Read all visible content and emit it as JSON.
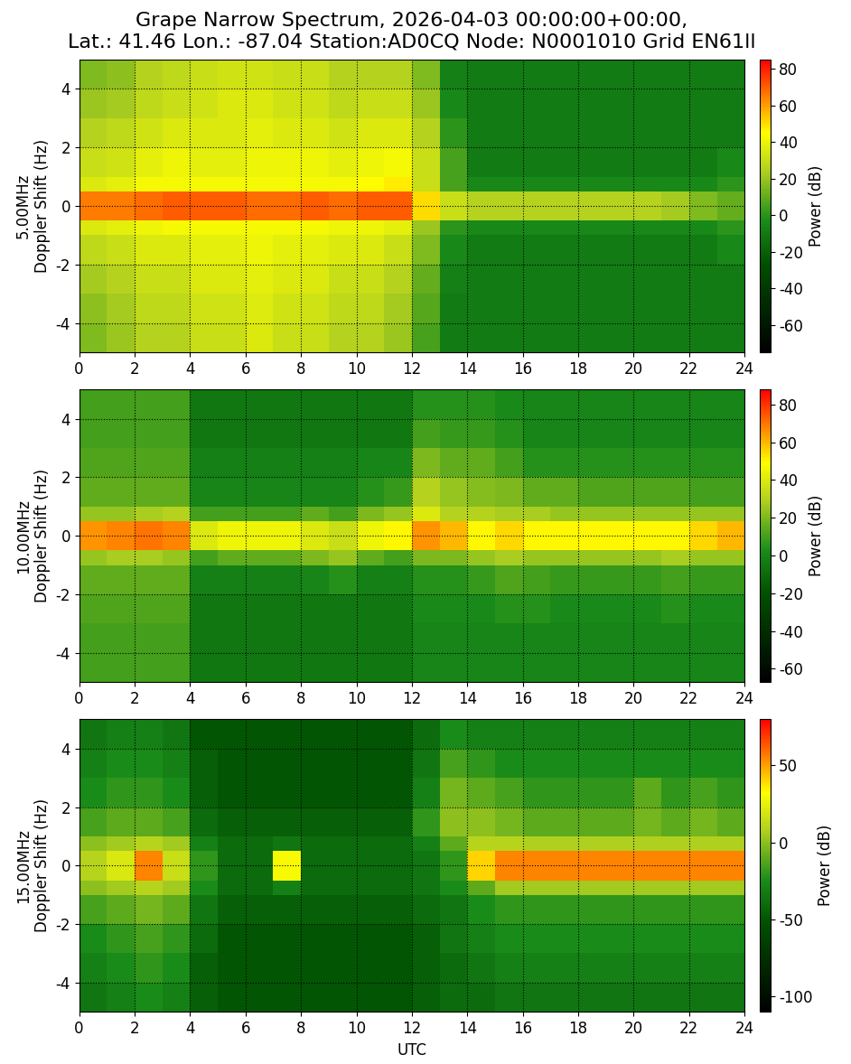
{
  "chart_data": [
    {
      "type": "heatmap",
      "title": "Grape Narrow Spectrum, 2026-04-03 00:00:00+00:00,\nLat.: 41.46 Lon.: -87.04 Station:AD0CQ Node: N0001010 Grid EN61ll",
      "ylabel": "5.00MHz\nDoppler Shift (Hz)",
      "time_edges": [
        0,
        1,
        2,
        3,
        4,
        5,
        6,
        7,
        8,
        9,
        10,
        11,
        12,
        13,
        14,
        15,
        16,
        17,
        18,
        19,
        20,
        21,
        22,
        23,
        24
      ],
      "doppler_edges": [
        -5,
        -4,
        -3,
        -2,
        -1,
        -0.5,
        0.5,
        1,
        2,
        3,
        4,
        5
      ],
      "cells": [
        [
          15,
          20,
          25,
          25,
          30,
          30,
          35,
          30,
          30,
          25,
          25,
          20,
          5,
          -10,
          -10,
          -10,
          -10,
          -10,
          -10,
          -10,
          -10,
          -10,
          -10,
          -10
        ],
        [
          18,
          22,
          28,
          28,
          32,
          32,
          36,
          32,
          32,
          28,
          28,
          22,
          8,
          -10,
          -10,
          -10,
          -10,
          -10,
          -10,
          -10,
          -10,
          -10,
          -10,
          -10
        ],
        [
          22,
          25,
          30,
          30,
          35,
          35,
          38,
          35,
          35,
          30,
          30,
          25,
          10,
          -8,
          -10,
          -10,
          -10,
          -10,
          -10,
          -10,
          -10,
          -10,
          -10,
          -10
        ],
        [
          28,
          30,
          35,
          35,
          38,
          38,
          40,
          38,
          38,
          35,
          35,
          30,
          15,
          -5,
          -10,
          -10,
          -10,
          -10,
          -10,
          -10,
          -10,
          -10,
          -10,
          -5
        ],
        [
          35,
          38,
          40,
          42,
          42,
          42,
          42,
          42,
          42,
          40,
          40,
          38,
          20,
          0,
          -5,
          -5,
          -5,
          -5,
          -5,
          -5,
          -5,
          -5,
          -5,
          0
        ],
        [
          65,
          65,
          68,
          70,
          70,
          70,
          68,
          68,
          70,
          68,
          70,
          70,
          50,
          30,
          25,
          25,
          25,
          25,
          25,
          25,
          25,
          22,
          15,
          10
        ],
        [
          35,
          38,
          42,
          42,
          42,
          42,
          42,
          42,
          42,
          42,
          45,
          48,
          30,
          5,
          -5,
          -5,
          -5,
          -5,
          -5,
          -5,
          -5,
          -5,
          -5,
          0
        ],
        [
          30,
          32,
          38,
          40,
          38,
          38,
          40,
          40,
          40,
          38,
          40,
          42,
          30,
          5,
          -10,
          -10,
          -10,
          -10,
          -10,
          -10,
          -10,
          -10,
          -10,
          -5
        ],
        [
          25,
          28,
          32,
          35,
          35,
          35,
          38,
          35,
          35,
          32,
          35,
          35,
          25,
          0,
          -10,
          -10,
          -10,
          -10,
          -10,
          -10,
          -10,
          -10,
          -10,
          -10
        ],
        [
          20,
          22,
          28,
          30,
          32,
          35,
          35,
          32,
          32,
          28,
          30,
          30,
          20,
          -5,
          -10,
          -10,
          -10,
          -10,
          -10,
          -10,
          -10,
          -10,
          -10,
          -10
        ],
        [
          15,
          18,
          25,
          28,
          30,
          32,
          32,
          30,
          30,
          25,
          25,
          25,
          15,
          -8,
          -10,
          -10,
          -10,
          -10,
          -10,
          -10,
          -10,
          -10,
          -10,
          -10
        ]
      ],
      "xlim": [
        0,
        24
      ],
      "ylim": [
        -5,
        5
      ],
      "xticks": [
        0,
        2,
        4,
        6,
        8,
        10,
        12,
        14,
        16,
        18,
        20,
        22,
        24
      ],
      "yticks": [
        -4,
        -2,
        0,
        2,
        4
      ],
      "grid": true,
      "colorbar": {
        "label": "Power (dB)",
        "range": [
          -75,
          85
        ],
        "ticks": [
          -60,
          -40,
          -20,
          0,
          20,
          40,
          60,
          80
        ]
      }
    },
    {
      "type": "heatmap",
      "ylabel": "10.00MHz\nDoppler Shift (Hz)",
      "time_edges": [
        0,
        1,
        2,
        3,
        4,
        5,
        6,
        7,
        8,
        9,
        10,
        11,
        12,
        13,
        14,
        15,
        16,
        17,
        18,
        19,
        20,
        21,
        22,
        23,
        24
      ],
      "doppler_edges": [
        -5,
        -4,
        -3,
        -2,
        -1,
        -0.5,
        0.5,
        1,
        2,
        3,
        4,
        5
      ],
      "cells": [
        [
          10,
          10,
          10,
          10,
          -5,
          -5,
          -5,
          -5,
          -5,
          -5,
          -5,
          -5,
          0,
          0,
          0,
          0,
          0,
          0,
          0,
          0,
          0,
          0,
          0,
          0
        ],
        [
          10,
          10,
          10,
          10,
          -5,
          -5,
          -5,
          -5,
          -5,
          -5,
          -5,
          -5,
          0,
          0,
          0,
          0,
          0,
          0,
          0,
          0,
          0,
          0,
          0,
          0
        ],
        [
          12,
          12,
          12,
          12,
          -5,
          -5,
          -5,
          -5,
          -5,
          -5,
          -5,
          -5,
          2,
          2,
          2,
          5,
          5,
          2,
          2,
          2,
          2,
          5,
          2,
          2
        ],
        [
          15,
          15,
          15,
          15,
          -2,
          -2,
          -2,
          -2,
          0,
          5,
          -2,
          -2,
          5,
          5,
          8,
          12,
          10,
          8,
          8,
          8,
          8,
          10,
          8,
          8
        ],
        [
          25,
          28,
          28,
          25,
          10,
          15,
          15,
          15,
          20,
          25,
          15,
          10,
          20,
          20,
          25,
          28,
          25,
          25,
          25,
          25,
          25,
          28,
          25,
          25
        ],
        [
          65,
          68,
          70,
          68,
          40,
          45,
          45,
          45,
          40,
          35,
          45,
          50,
          65,
          60,
          50,
          55,
          50,
          50,
          50,
          50,
          50,
          50,
          55,
          60
        ],
        [
          25,
          25,
          28,
          30,
          10,
          10,
          10,
          10,
          15,
          10,
          20,
          25,
          40,
          30,
          30,
          28,
          28,
          25,
          25,
          25,
          25,
          25,
          25,
          25
        ],
        [
          15,
          15,
          15,
          15,
          0,
          0,
          0,
          0,
          0,
          0,
          5,
          8,
          30,
          25,
          22,
          20,
          15,
          15,
          12,
          12,
          12,
          12,
          10,
          10
        ],
        [
          12,
          12,
          12,
          12,
          -2,
          -2,
          -2,
          -2,
          -2,
          -2,
          0,
          0,
          20,
          15,
          15,
          10,
          5,
          5,
          5,
          5,
          5,
          5,
          5,
          5
        ],
        [
          10,
          10,
          10,
          10,
          -5,
          -5,
          -5,
          -5,
          -5,
          -5,
          -5,
          -5,
          10,
          8,
          8,
          5,
          0,
          0,
          0,
          0,
          0,
          0,
          0,
          0
        ],
        [
          10,
          10,
          10,
          10,
          -5,
          -5,
          -5,
          -5,
          -5,
          -5,
          -5,
          -5,
          5,
          5,
          5,
          2,
          0,
          0,
          0,
          0,
          0,
          0,
          0,
          0
        ]
      ],
      "xlim": [
        0,
        24
      ],
      "ylim": [
        -5,
        5
      ],
      "xticks": [
        0,
        2,
        4,
        6,
        8,
        10,
        12,
        14,
        16,
        18,
        20,
        22,
        24
      ],
      "yticks": [
        -4,
        -2,
        0,
        2,
        4
      ],
      "grid": true,
      "colorbar": {
        "label": "Power (dB)",
        "range": [
          -67,
          88
        ],
        "ticks": [
          -60,
          -40,
          -20,
          0,
          20,
          40,
          60,
          80
        ]
      }
    },
    {
      "type": "heatmap",
      "ylabel": "15.00MHz\nDoppler Shift (Hz)",
      "xlabel": "UTC",
      "time_edges": [
        0,
        1,
        2,
        3,
        4,
        5,
        6,
        7,
        8,
        9,
        10,
        11,
        12,
        13,
        14,
        15,
        16,
        17,
        18,
        19,
        20,
        21,
        22,
        23,
        24
      ],
      "doppler_edges": [
        -5,
        -4,
        -3,
        -2,
        -1,
        -0.5,
        0.5,
        1,
        2,
        3,
        4,
        5
      ],
      "cells": [
        [
          -35,
          -30,
          -25,
          -30,
          -45,
          -50,
          -50,
          -50,
          -50,
          -50,
          -50,
          -50,
          -45,
          -40,
          -40,
          -35,
          -35,
          -35,
          -35,
          -35,
          -35,
          -35,
          -35,
          -35
        ],
        [
          -30,
          -25,
          -20,
          -25,
          -45,
          -50,
          -50,
          -50,
          -50,
          -50,
          -50,
          -50,
          -45,
          -40,
          -35,
          -30,
          -30,
          -30,
          -30,
          -30,
          -30,
          -30,
          -30,
          -30
        ],
        [
          -25,
          -20,
          -15,
          -20,
          -40,
          -50,
          -50,
          -50,
          -50,
          -50,
          -50,
          -50,
          -45,
          -35,
          -30,
          -25,
          -25,
          -25,
          -25,
          -25,
          -25,
          -25,
          -25,
          -25
        ],
        [
          -15,
          -10,
          -5,
          -10,
          -35,
          -45,
          -45,
          -45,
          -45,
          -45,
          -45,
          -45,
          -40,
          -35,
          -25,
          -20,
          -20,
          -20,
          -20,
          -20,
          -20,
          -20,
          -20,
          -20
        ],
        [
          0,
          5,
          10,
          5,
          -25,
          -40,
          -40,
          -30,
          -40,
          -40,
          -40,
          -40,
          -35,
          -25,
          -10,
          5,
          5,
          5,
          5,
          5,
          5,
          5,
          5,
          5
        ],
        [
          10,
          20,
          55,
          15,
          -20,
          -40,
          -40,
          30,
          -40,
          -40,
          -40,
          -40,
          -35,
          -20,
          40,
          55,
          55,
          55,
          55,
          55,
          55,
          55,
          55,
          55
        ],
        [
          0,
          5,
          10,
          5,
          -30,
          -40,
          -40,
          -35,
          -40,
          -40,
          -40,
          -40,
          -30,
          -10,
          10,
          10,
          8,
          8,
          8,
          8,
          8,
          8,
          8,
          8
        ],
        [
          -15,
          -10,
          -10,
          -15,
          -40,
          -45,
          -45,
          -45,
          -45,
          -45,
          -45,
          -45,
          -20,
          0,
          0,
          -5,
          -10,
          -10,
          -10,
          -10,
          -5,
          -10,
          -5,
          -10
        ],
        [
          -25,
          -20,
          -20,
          -25,
          -45,
          -50,
          -50,
          -50,
          -50,
          -50,
          -50,
          -50,
          -30,
          -5,
          -10,
          -15,
          -20,
          -20,
          -20,
          -20,
          -10,
          -20,
          -15,
          -20
        ],
        [
          -30,
          -25,
          -25,
          -30,
          -45,
          -50,
          -50,
          -50,
          -50,
          -50,
          -50,
          -50,
          -35,
          -15,
          -20,
          -25,
          -25,
          -25,
          -25,
          -25,
          -25,
          -25,
          -25,
          -25
        ],
        [
          -35,
          -30,
          -30,
          -35,
          -50,
          -50,
          -50,
          -50,
          -50,
          -50,
          -50,
          -50,
          -40,
          -25,
          -30,
          -30,
          -30,
          -30,
          -30,
          -30,
          -30,
          -30,
          -30,
          -30
        ]
      ],
      "xlim": [
        0,
        24
      ],
      "ylim": [
        -5,
        5
      ],
      "xticks": [
        0,
        2,
        4,
        6,
        8,
        10,
        12,
        14,
        16,
        18,
        20,
        22,
        24
      ],
      "yticks": [
        -4,
        -2,
        0,
        2,
        4
      ],
      "grid": true,
      "colorbar": {
        "label": "Power (dB)",
        "range": [
          -110,
          80
        ],
        "ticks": [
          -100,
          -50,
          0,
          50
        ]
      }
    }
  ]
}
